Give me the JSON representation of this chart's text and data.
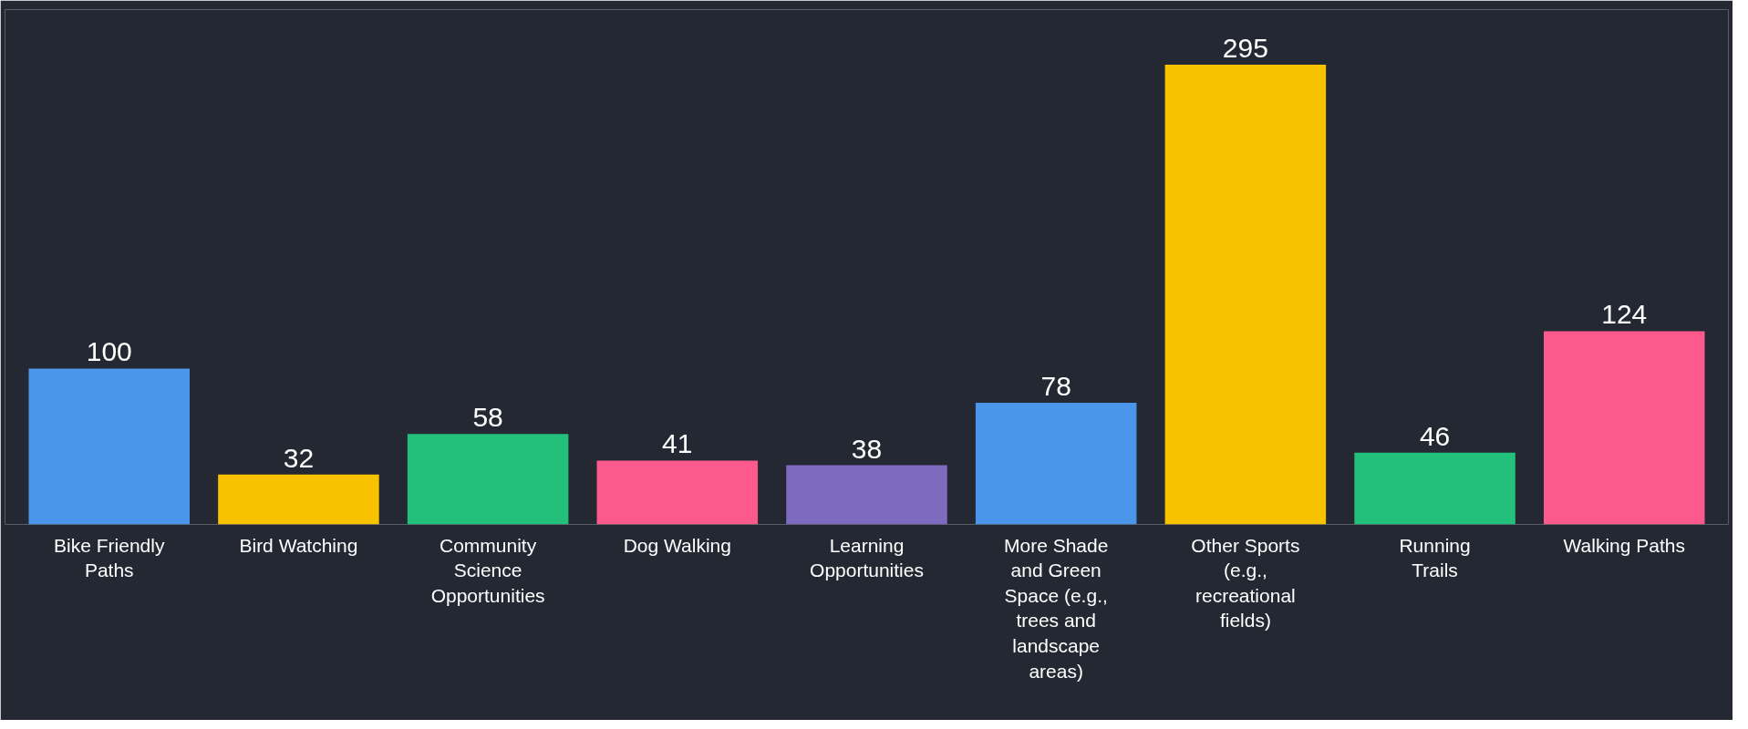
{
  "chart_data": {
    "type": "bar",
    "categories": [
      "Bike Friendly Paths",
      "Bird Watching",
      "Community Science Opportunities",
      "Dog Walking",
      "Learning Opportunities",
      "More Shade and Green Space (e.g., trees and landscape areas)",
      "Other Sports (e.g., recreational fields)",
      "Running Trails",
      "Walking Paths"
    ],
    "values": [
      100,
      32,
      58,
      41,
      38,
      78,
      295,
      46,
      124
    ],
    "colors": [
      "#4a96ea",
      "#f9c200",
      "#22c07a",
      "#fc5a8d",
      "#7e6bbf",
      "#4a96ea",
      "#f9c200",
      "#22c07a",
      "#fc5a8d"
    ],
    "data_labels": true,
    "tick_labels": "x",
    "grid": false
  }
}
